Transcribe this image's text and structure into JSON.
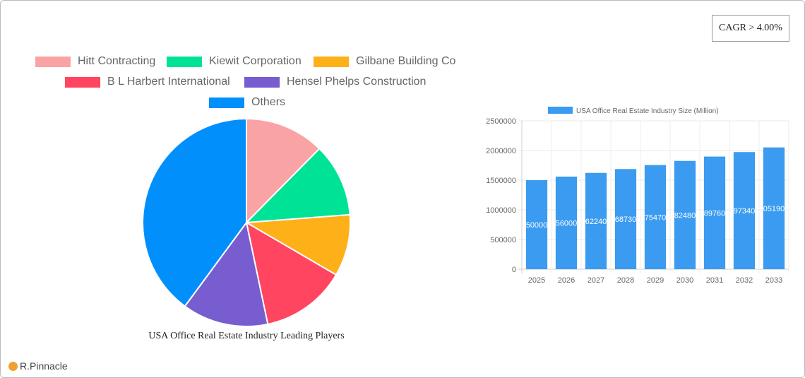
{
  "cagr": "CAGR > 4.00%",
  "logo": "R.Pinnacle",
  "chart_data": [
    {
      "type": "pie",
      "title": "USA Office Real Estate Industry Leading Players",
      "legend_position": "top",
      "slices": [
        {
          "name": "Hitt Contracting",
          "value": 12.4,
          "color": "#f9a3a4"
        },
        {
          "name": "Kiewit Corporation",
          "value": 11.4,
          "color": "#00e396"
        },
        {
          "name": "Gilbane Building Co",
          "value": 9.6,
          "color": "#feb019"
        },
        {
          "name": "B L  Harbert International",
          "value": 13.3,
          "color": "#ff4560"
        },
        {
          "name": "Hensel Phelps Construction",
          "value": 13.4,
          "color": "#775dd0"
        },
        {
          "name": "Others",
          "value": 39.9,
          "color": "#008ffb"
        }
      ]
    },
    {
      "type": "bar",
      "legend": "USA Office Real Estate Industry Size (Million)",
      "legend_position": "top",
      "color": "#3a9bf0",
      "grid": true,
      "categories": [
        "2025",
        "2026",
        "2027",
        "2028",
        "2029",
        "2030",
        "2031",
        "2032",
        "2033"
      ],
      "values": [
        1500000,
        1560000,
        1622400,
        1687300,
        1754700,
        1824800,
        1897600,
        1973400,
        2051900
      ],
      "ylim": [
        0,
        2500000
      ],
      "yticks": [
        "0",
        "500000",
        "1000000",
        "1500000",
        "2000000",
        "2500000"
      ]
    }
  ]
}
